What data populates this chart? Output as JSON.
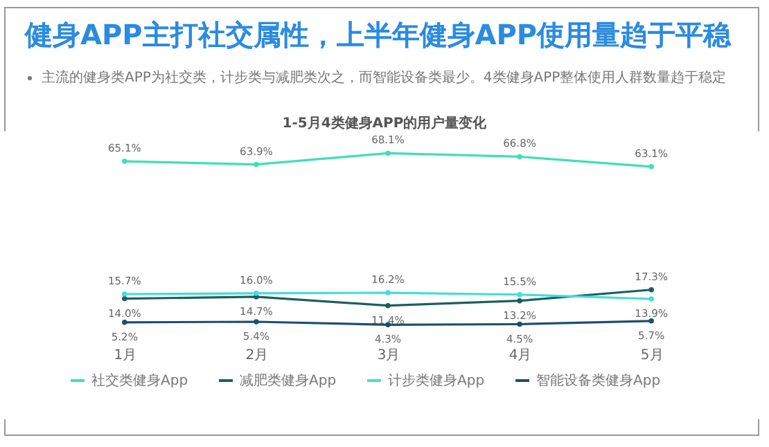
{
  "chart_data": {
    "type": "line",
    "title": "健身APP主打社交属性，上半年健身APP使用量趋于平稳",
    "subtitle": "主流的健身类APP为社交类，计步类与减肥类次之，而智能设备类最少。4类健身APP整体使用人群数量趋于稳定",
    "annotations": [
      "1-5月4类健身APP的用户量变化"
    ],
    "categories": [
      "1月",
      "2月",
      "3月",
      "4月",
      "5月"
    ],
    "series": [
      {
        "name": "社交类健身App",
        "color": "#3fe0b4",
        "values": [
          65.1,
          63.9,
          68.1,
          66.8,
          63.1
        ],
        "value_labels": [
          "65.1%",
          "63.9%",
          "68.1%",
          "66.8%",
          "63.1%"
        ]
      },
      {
        "name": "减肥类健身App",
        "color": "#1d5f5c",
        "values": [
          14.0,
          14.7,
          11.4,
          13.2,
          17.3
        ],
        "value_labels": [
          "14.0%",
          "14.7%",
          "11.4%",
          "13.2%",
          "17.3%"
        ]
      },
      {
        "name": "计步类健身App",
        "color": "#45dcdc",
        "values": [
          15.7,
          16.0,
          16.2,
          15.5,
          13.9
        ],
        "value_labels": [
          "15.7%",
          "16.0%",
          "16.2%",
          "15.5%",
          "13.9%"
        ]
      },
      {
        "name": "智能设备类健身App",
        "color": "#1f4e6b",
        "values": [
          5.2,
          5.4,
          4.3,
          4.5,
          5.7
        ],
        "value_labels": [
          "5.2%",
          "5.4%",
          "4.3%",
          "4.5%",
          "5.7%"
        ]
      }
    ],
    "legend": "bottom",
    "marker": "circle",
    "line_style": "solid"
  }
}
